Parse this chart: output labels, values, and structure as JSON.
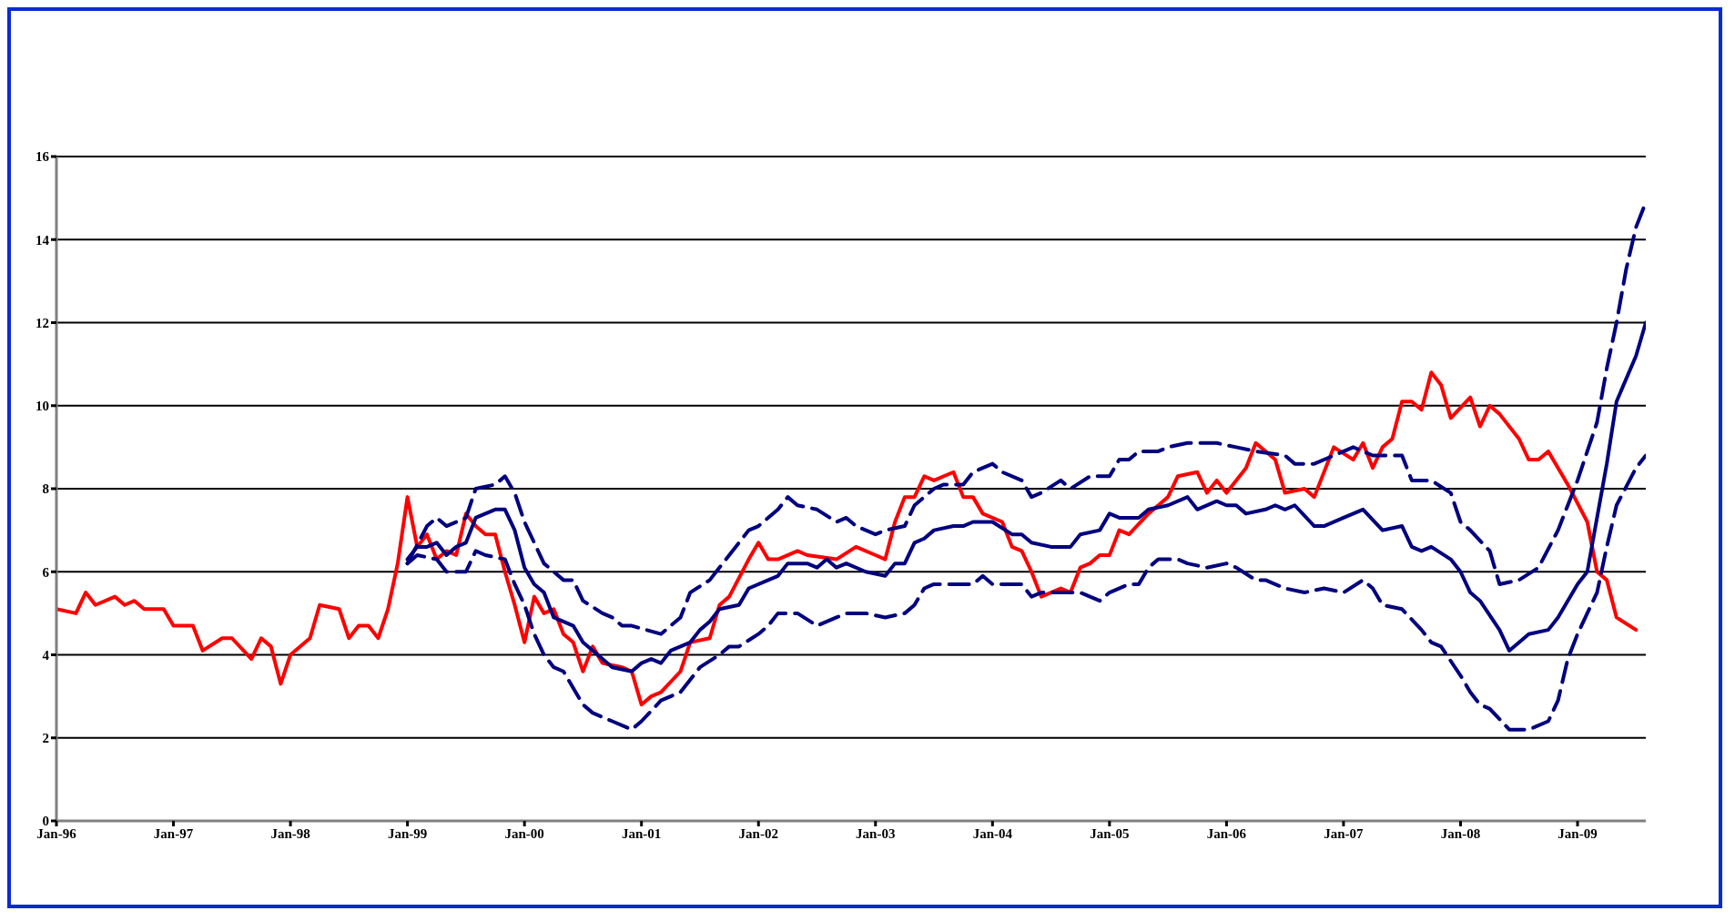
{
  "chart_data": {
    "type": "line",
    "xlim": [
      "1996-01",
      "2009-08"
    ],
    "ylim": [
      0,
      16
    ],
    "yticks": [
      0,
      2,
      4,
      6,
      8,
      10,
      12,
      14,
      16
    ],
    "xticks": [
      {
        "value": "1996-01",
        "label": "Jan-96"
      },
      {
        "value": "1997-01",
        "label": "Jan-97"
      },
      {
        "value": "1998-01",
        "label": "Jan-98"
      },
      {
        "value": "1999-01",
        "label": "Jan-99"
      },
      {
        "value": "2000-01",
        "label": "Jan-00"
      },
      {
        "value": "2001-01",
        "label": "Jan-01"
      },
      {
        "value": "2002-01",
        "label": "Jan-02"
      },
      {
        "value": "2003-01",
        "label": "Jan-03"
      },
      {
        "value": "2004-01",
        "label": "Jan-04"
      },
      {
        "value": "2005-01",
        "label": "Jan-05"
      },
      {
        "value": "2006-01",
        "label": "Jan-06"
      },
      {
        "value": "2007-01",
        "label": "Jan-07"
      },
      {
        "value": "2008-01",
        "label": "Jan-08"
      },
      {
        "value": "2009-01",
        "label": "Jan-09"
      }
    ],
    "grid": "y",
    "legend": false,
    "marker": "none",
    "series": [
      {
        "color": "#ff0000",
        "line_style": "solid",
        "x": [
          "1996-01",
          "1996-03",
          "1996-04",
          "1996-05",
          "1996-07",
          "1996-08",
          "1996-09",
          "1996-10",
          "1996-12",
          "1997-01",
          "1997-03",
          "1997-04",
          "1997-06",
          "1997-07",
          "1997-09",
          "1997-10",
          "1997-11",
          "1997-12",
          "1998-01",
          "1998-03",
          "1998-04",
          "1998-06",
          "1998-07",
          "1998-08",
          "1998-09",
          "1998-10",
          "1998-11",
          "1998-12",
          "1999-01",
          "1999-02",
          "1999-03",
          "1999-04",
          "1999-05",
          "1999-06",
          "1999-07",
          "1999-08",
          "1999-09",
          "1999-10",
          "1999-11",
          "1999-12",
          "2000-01",
          "2000-02",
          "2000-03",
          "2000-04",
          "2000-05",
          "2000-06",
          "2000-07",
          "2000-08",
          "2000-09",
          "2000-11",
          "2000-12",
          "2001-01",
          "2001-02",
          "2001-03",
          "2001-05",
          "2001-06",
          "2001-08",
          "2001-09",
          "2001-10",
          "2001-12",
          "2002-01",
          "2002-02",
          "2002-03",
          "2002-05",
          "2002-06",
          "2002-09",
          "2002-11",
          "2003-01",
          "2003-02",
          "2003-03",
          "2003-04",
          "2003-05",
          "2003-06",
          "2003-07",
          "2003-09",
          "2003-10",
          "2003-11",
          "2003-12",
          "2004-02",
          "2004-03",
          "2004-04",
          "2004-05",
          "2004-06",
          "2004-07",
          "2004-08",
          "2004-09",
          "2004-10",
          "2004-11",
          "2004-12",
          "2005-01",
          "2005-02",
          "2005-03",
          "2005-05",
          "2005-07",
          "2005-08",
          "2005-10",
          "2005-11",
          "2005-12",
          "2006-01",
          "2006-03",
          "2006-04",
          "2006-06",
          "2006-07",
          "2006-09",
          "2006-10",
          "2006-12",
          "2007-02",
          "2007-03",
          "2007-04",
          "2007-05",
          "2007-06",
          "2007-07",
          "2007-08",
          "2007-09",
          "2007-10",
          "2007-11",
          "2007-12",
          "2008-02",
          "2008-03",
          "2008-04",
          "2008-05",
          "2008-07",
          "2008-08",
          "2008-09",
          "2008-10",
          "2008-12",
          "2009-02",
          "2009-03",
          "2009-04",
          "2009-05",
          "2009-07"
        ],
        "values": [
          5.1,
          5.0,
          5.5,
          5.2,
          5.4,
          5.2,
          5.3,
          5.1,
          5.1,
          4.7,
          4.7,
          4.1,
          4.4,
          4.4,
          3.9,
          4.4,
          4.2,
          3.3,
          4.0,
          4.4,
          5.2,
          5.1,
          4.4,
          4.7,
          4.7,
          4.4,
          5.1,
          6.2,
          7.8,
          6.6,
          6.9,
          6.3,
          6.5,
          6.4,
          7.4,
          7.1,
          6.9,
          6.9,
          6.0,
          5.2,
          4.3,
          5.4,
          5.0,
          5.1,
          4.5,
          4.3,
          3.6,
          4.2,
          3.8,
          3.7,
          3.6,
          2.8,
          3.0,
          3.1,
          3.6,
          4.3,
          4.4,
          5.2,
          5.4,
          6.3,
          6.7,
          6.3,
          6.3,
          6.5,
          6.4,
          6.3,
          6.6,
          6.4,
          6.3,
          7.2,
          7.8,
          7.8,
          8.3,
          8.2,
          8.4,
          7.8,
          7.8,
          7.4,
          7.2,
          6.6,
          6.5,
          6.0,
          5.4,
          5.5,
          5.6,
          5.5,
          6.1,
          6.2,
          6.4,
          6.4,
          7.0,
          6.9,
          7.4,
          7.8,
          8.3,
          8.4,
          7.9,
          8.2,
          7.9,
          8.5,
          9.1,
          8.7,
          7.9,
          8.0,
          7.8,
          9.0,
          8.7,
          9.1,
          8.5,
          9.0,
          9.2,
          10.1,
          10.1,
          9.9,
          10.8,
          10.5,
          9.7,
          10.2,
          9.5,
          10.0,
          9.8,
          9.2,
          8.7,
          8.7,
          8.9,
          8.1,
          7.2,
          6.0,
          5.8,
          4.9,
          4.6
        ]
      },
      {
        "color": "#000080",
        "line_style": "solid",
        "x": [
          "1999-01",
          "1999-02",
          "1999-03",
          "1999-04",
          "1999-05",
          "1999-06",
          "1999-07",
          "1999-08",
          "1999-10",
          "1999-11",
          "1999-12",
          "2000-01",
          "2000-02",
          "2000-03",
          "2000-04",
          "2000-06",
          "2000-07",
          "2000-09",
          "2000-10",
          "2000-12",
          "2001-01",
          "2001-02",
          "2001-03",
          "2001-04",
          "2001-06",
          "2001-07",
          "2001-08",
          "2001-09",
          "2001-11",
          "2001-12",
          "2002-02",
          "2002-03",
          "2002-04",
          "2002-06",
          "2002-07",
          "2002-08",
          "2002-09",
          "2002-10",
          "2002-12",
          "2003-02",
          "2003-03",
          "2003-04",
          "2003-05",
          "2003-06",
          "2003-07",
          "2003-09",
          "2003-10",
          "2003-11",
          "2004-01",
          "2004-03",
          "2004-04",
          "2004-05",
          "2004-07",
          "2004-09",
          "2004-10",
          "2004-12",
          "2005-01",
          "2005-02",
          "2005-04",
          "2005-05",
          "2005-07",
          "2005-09",
          "2005-10",
          "2005-12",
          "2006-01",
          "2006-02",
          "2006-03",
          "2006-05",
          "2006-06",
          "2006-07",
          "2006-08",
          "2006-10",
          "2006-11",
          "2007-01",
          "2007-03",
          "2007-05",
          "2007-07",
          "2007-08",
          "2007-09",
          "2007-10",
          "2007-12",
          "2008-01",
          "2008-02",
          "2008-03",
          "2008-05",
          "2008-06",
          "2008-08",
          "2008-10",
          "2008-11",
          "2009-01",
          "2009-02",
          "2009-03",
          "2009-04",
          "2009-05",
          "2009-07",
          "2009-08"
        ],
        "values": [
          6.3,
          6.6,
          6.6,
          6.7,
          6.4,
          6.6,
          6.7,
          7.3,
          7.5,
          7.5,
          7.0,
          6.1,
          5.7,
          5.5,
          4.9,
          4.7,
          4.3,
          3.9,
          3.7,
          3.6,
          3.8,
          3.9,
          3.8,
          4.1,
          4.3,
          4.6,
          4.8,
          5.1,
          5.2,
          5.6,
          5.8,
          5.9,
          6.2,
          6.2,
          6.1,
          6.3,
          6.1,
          6.2,
          6.0,
          5.9,
          6.2,
          6.2,
          6.7,
          6.8,
          7.0,
          7.1,
          7.1,
          7.2,
          7.2,
          6.9,
          6.9,
          6.7,
          6.6,
          6.6,
          6.9,
          7.0,
          7.4,
          7.3,
          7.3,
          7.5,
          7.6,
          7.8,
          7.5,
          7.7,
          7.6,
          7.6,
          7.4,
          7.5,
          7.6,
          7.5,
          7.6,
          7.1,
          7.1,
          7.3,
          7.5,
          7.0,
          7.1,
          6.6,
          6.5,
          6.6,
          6.3,
          6.0,
          5.5,
          5.3,
          4.6,
          4.1,
          4.5,
          4.6,
          4.9,
          5.7,
          6.0,
          7.3,
          8.6,
          10.1,
          11.2,
          12.0
        ]
      },
      {
        "color": "#000080",
        "line_style": "dashed",
        "x": [
          "1999-01",
          "1999-03",
          "1999-04",
          "1999-05",
          "1999-07",
          "1999-08",
          "1999-10",
          "1999-11",
          "1999-12",
          "2000-01",
          "2000-02",
          "2000-03",
          "2000-05",
          "2000-06",
          "2000-07",
          "2000-09",
          "2000-10",
          "2000-11",
          "2000-12",
          "2001-03",
          "2001-05",
          "2001-06",
          "2001-08",
          "2001-10",
          "2001-11",
          "2001-12",
          "2002-01",
          "2002-03",
          "2002-04",
          "2002-05",
          "2002-07",
          "2002-09",
          "2002-10",
          "2002-11",
          "2003-01",
          "2003-02",
          "2003-04",
          "2003-05",
          "2003-07",
          "2003-08",
          "2003-10",
          "2003-11",
          "2004-01",
          "2004-02",
          "2004-04",
          "2004-05",
          "2004-06",
          "2004-08",
          "2004-09",
          "2004-11",
          "2005-01",
          "2005-02",
          "2005-03",
          "2005-04",
          "2005-06",
          "2005-07",
          "2005-09",
          "2005-12",
          "2006-02",
          "2006-04",
          "2006-07",
          "2006-08",
          "2006-10",
          "2006-12",
          "2007-02",
          "2007-04",
          "2007-07",
          "2007-08",
          "2007-10",
          "2007-12",
          "2008-01",
          "2008-02",
          "2008-04",
          "2008-05",
          "2008-07",
          "2008-09",
          "2008-11",
          "2009-01",
          "2009-03",
          "2009-04",
          "2009-05",
          "2009-06",
          "2009-07",
          "2009-08"
        ],
        "values": [
          6.2,
          7.1,
          7.3,
          7.1,
          7.3,
          8.0,
          8.1,
          8.3,
          7.9,
          7.2,
          6.7,
          6.2,
          5.8,
          5.8,
          5.3,
          5.0,
          4.9,
          4.7,
          4.7,
          4.5,
          4.9,
          5.5,
          5.8,
          6.4,
          6.7,
          7.0,
          7.1,
          7.5,
          7.8,
          7.6,
          7.5,
          7.2,
          7.3,
          7.1,
          6.9,
          7.0,
          7.1,
          7.6,
          8.0,
          8.1,
          8.1,
          8.4,
          8.6,
          8.4,
          8.2,
          7.8,
          7.9,
          8.2,
          8.0,
          8.3,
          8.3,
          8.7,
          8.7,
          8.9,
          8.9,
          9.0,
          9.1,
          9.1,
          9.0,
          8.9,
          8.8,
          8.6,
          8.6,
          8.8,
          9.0,
          8.8,
          8.8,
          8.2,
          8.2,
          7.9,
          7.2,
          7.0,
          6.5,
          5.7,
          5.8,
          6.1,
          7.0,
          8.2,
          9.6,
          10.9,
          12.0,
          13.3,
          14.3,
          14.9
        ]
      },
      {
        "color": "#000080",
        "line_style": "dashed",
        "x": [
          "1999-01",
          "1999-02",
          "1999-04",
          "1999-05",
          "1999-07",
          "1999-08",
          "1999-09",
          "1999-11",
          "1999-12",
          "2000-01",
          "2000-02",
          "2000-03",
          "2000-04",
          "2000-05",
          "2000-06",
          "2000-07",
          "2000-08",
          "2000-10",
          "2000-12",
          "2001-01",
          "2001-03",
          "2001-05",
          "2001-07",
          "2001-09",
          "2001-10",
          "2001-11",
          "2002-01",
          "2002-02",
          "2002-03",
          "2002-05",
          "2002-07",
          "2002-09",
          "2002-10",
          "2002-12",
          "2003-02",
          "2003-04",
          "2003-05",
          "2003-06",
          "2003-07",
          "2003-09",
          "2003-11",
          "2003-12",
          "2004-01",
          "2004-04",
          "2004-05",
          "2004-06",
          "2004-08",
          "2004-10",
          "2004-11",
          "2004-12",
          "2005-01",
          "2005-03",
          "2005-04",
          "2005-05",
          "2005-06",
          "2005-08",
          "2005-09",
          "2005-11",
          "2006-01",
          "2006-02",
          "2006-04",
          "2006-05",
          "2006-07",
          "2006-09",
          "2006-11",
          "2007-01",
          "2007-03",
          "2007-04",
          "2007-05",
          "2007-07",
          "2007-09",
          "2007-10",
          "2007-11",
          "2008-01",
          "2008-02",
          "2008-03",
          "2008-04",
          "2008-06",
          "2008-08",
          "2008-10",
          "2008-11",
          "2008-12",
          "2009-01",
          "2009-03",
          "2009-04",
          "2009-05",
          "2009-07",
          "2009-08"
        ],
        "values": [
          6.2,
          6.4,
          6.3,
          6.0,
          6.0,
          6.5,
          6.4,
          6.3,
          5.7,
          5.2,
          4.5,
          4.0,
          3.7,
          3.6,
          3.2,
          2.8,
          2.6,
          2.4,
          2.2,
          2.4,
          2.9,
          3.1,
          3.7,
          4.0,
          4.2,
          4.2,
          4.5,
          4.7,
          5.0,
          5.0,
          4.7,
          4.9,
          5.0,
          5.0,
          4.9,
          5.0,
          5.2,
          5.6,
          5.7,
          5.7,
          5.7,
          5.9,
          5.7,
          5.7,
          5.4,
          5.5,
          5.5,
          5.5,
          5.4,
          5.3,
          5.5,
          5.7,
          5.7,
          6.1,
          6.3,
          6.3,
          6.2,
          6.1,
          6.2,
          6.1,
          5.8,
          5.8,
          5.6,
          5.5,
          5.6,
          5.5,
          5.8,
          5.6,
          5.2,
          5.1,
          4.6,
          4.3,
          4.2,
          3.5,
          3.1,
          2.8,
          2.7,
          2.2,
          2.2,
          2.4,
          2.9,
          3.9,
          4.5,
          5.5,
          6.6,
          7.6,
          8.5,
          8.8
        ]
      }
    ]
  }
}
